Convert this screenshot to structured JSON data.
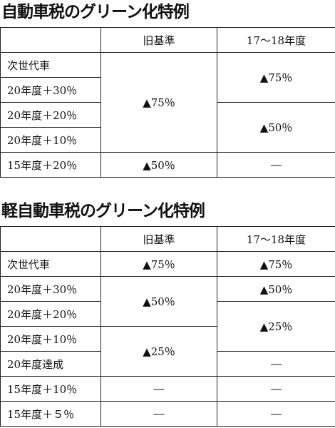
{
  "table1": {
    "title": "自動車税のグリーン化特例",
    "col_old": "旧基準",
    "col_new": "17〜18年度",
    "rows": [
      "次世代車",
      "20年度＋30％",
      "20年度＋20％",
      "20年度＋10％",
      "15年度＋20％"
    ],
    "old": {
      "a": "▲75％",
      "b": "▲50％"
    },
    "new": {
      "a": "▲75％",
      "b": "▲50％",
      "c": "―"
    }
  },
  "table2": {
    "title": "軽自動車税のグリーン化特例",
    "col_old": "旧基準",
    "col_new": "17〜18年度",
    "rows": [
      "次世代車",
      "20年度＋30％",
      "20年度＋20％",
      "20年度＋10％",
      "20年度達成",
      "15年度＋10％",
      "15年度＋５％"
    ],
    "old": {
      "a": "▲75％",
      "b": "▲50％",
      "c": "▲25％",
      "d": "―",
      "e": "―"
    },
    "new": {
      "a": "▲75％",
      "b": "▲50％",
      "c": "▲25％",
      "d": "―",
      "e": "―",
      "f": "―"
    }
  }
}
